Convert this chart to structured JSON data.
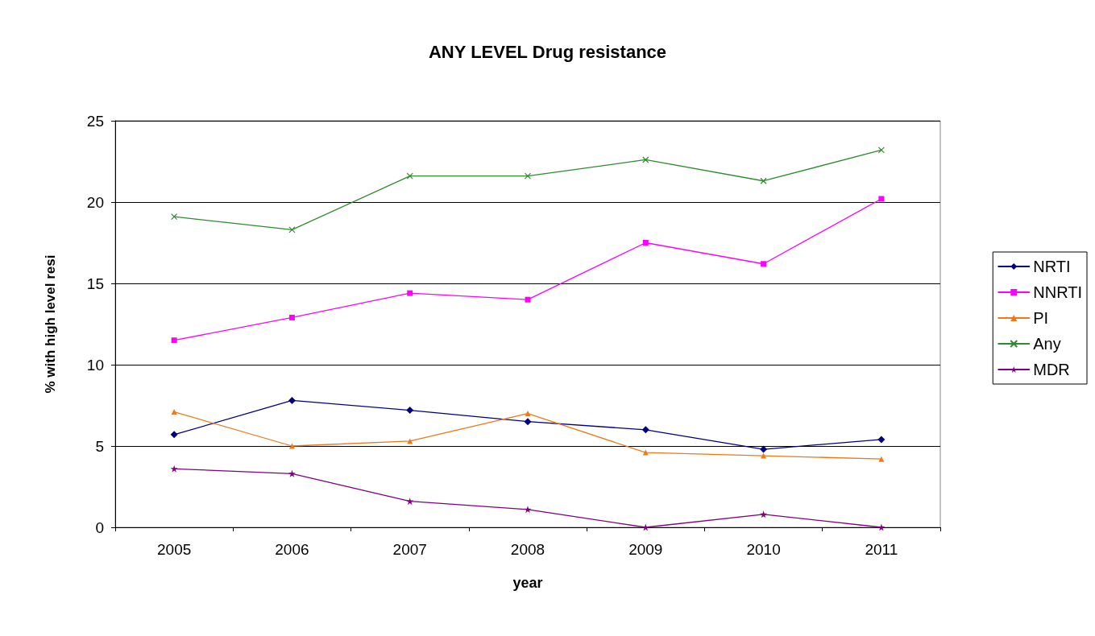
{
  "chart_data": {
    "type": "line",
    "title": "ANY LEVEL Drug resistance",
    "xlabel": "year",
    "ylabel": "% with high level resi",
    "categories": [
      "2005",
      "2006",
      "2007",
      "2008",
      "2009",
      "2010",
      "2011"
    ],
    "series": [
      {
        "name": "NRTI",
        "color": "#000080",
        "marker": "diamond",
        "values": [
          5.7,
          7.8,
          7.2,
          6.5,
          6.0,
          4.8,
          5.4
        ]
      },
      {
        "name": "NNRTI",
        "color": "#ff00ff",
        "marker": "square",
        "values": [
          11.5,
          12.9,
          14.4,
          14.0,
          17.5,
          16.2,
          20.2
        ]
      },
      {
        "name": "PI",
        "color": "#f07818",
        "marker": "triangle",
        "values": [
          7.1,
          5.0,
          5.3,
          7.0,
          4.6,
          4.4,
          4.2
        ]
      },
      {
        "name": "Any",
        "color": "#2e8b2e",
        "marker": "cross",
        "values": [
          19.1,
          18.3,
          21.6,
          21.6,
          22.6,
          21.3,
          23.2
        ]
      },
      {
        "name": "MDR",
        "color": "#800080",
        "marker": "star",
        "values": [
          3.6,
          3.3,
          1.6,
          1.1,
          0,
          0.8,
          0
        ]
      }
    ],
    "ylim": [
      0,
      25
    ],
    "yticks": [
      0,
      5,
      10,
      15,
      20,
      25
    ],
    "grid": "y",
    "legend": "right"
  }
}
